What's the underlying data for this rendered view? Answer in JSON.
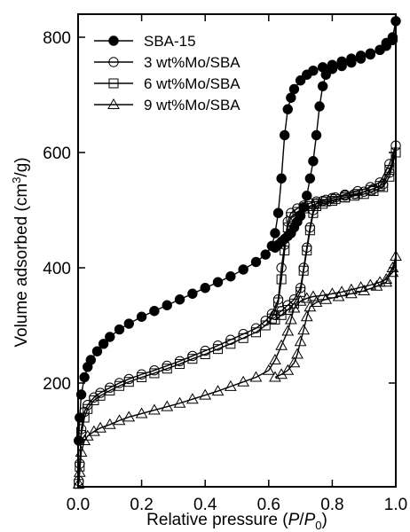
{
  "chart_data": {
    "type": "scatter",
    "title": "",
    "xlabel_parts": [
      "Relative pressure (",
      "P",
      "/",
      "P",
      "0",
      ")"
    ],
    "ylabel_parts": [
      "Volume adsorbed (cm",
      "3",
      "/g)"
    ],
    "xlim": [
      0.0,
      1.0
    ],
    "ylim": [
      20,
      840
    ],
    "xticks": [
      0.0,
      0.2,
      0.4,
      0.6,
      0.8,
      1.0
    ],
    "xtick_labels": [
      "0.0",
      "0.2",
      "0.4",
      "0.6",
      "0.8",
      "1.0"
    ],
    "yticks": [
      200,
      400,
      600,
      800
    ],
    "ytick_labels": [
      "200",
      "400",
      "600",
      "800"
    ],
    "legend_position": "top-left",
    "series": [
      {
        "name": "SBA-15",
        "marker": "filled-circle",
        "x": [
          0.002,
          0.005,
          0.01,
          0.02,
          0.03,
          0.04,
          0.06,
          0.08,
          0.1,
          0.13,
          0.16,
          0.2,
          0.24,
          0.28,
          0.32,
          0.36,
          0.4,
          0.44,
          0.48,
          0.52,
          0.56,
          0.59,
          0.61,
          0.62,
          0.63,
          0.64,
          0.65,
          0.66,
          0.67,
          0.68,
          0.7,
          0.72,
          0.74,
          0.77,
          0.8,
          0.83,
          0.86,
          0.89,
          0.92,
          0.95,
          0.97,
          0.99,
          1.0,
          0.99,
          0.97,
          0.95,
          0.92,
          0.89,
          0.86,
          0.83,
          0.8,
          0.78,
          0.77,
          0.76,
          0.75,
          0.74,
          0.73,
          0.72,
          0.71,
          0.7,
          0.69,
          0.68,
          0.67,
          0.66,
          0.65,
          0.64,
          0.63,
          0.62
        ],
        "y": [
          100,
          140,
          180,
          210,
          228,
          240,
          255,
          268,
          280,
          293,
          303,
          315,
          325,
          335,
          345,
          355,
          365,
          375,
          385,
          397,
          410,
          423,
          438,
          460,
          495,
          555,
          630,
          675,
          695,
          710,
          725,
          735,
          742,
          748,
          752,
          758,
          763,
          768,
          772,
          778,
          785,
          795,
          828,
          800,
          790,
          778,
          770,
          763,
          756,
          750,
          745,
          735,
          715,
          680,
          630,
          585,
          555,
          525,
          505,
          490,
          480,
          470,
          460,
          455,
          450,
          445,
          440,
          435
        ]
      },
      {
        "name": "3 wt%Mo/SBA",
        "marker": "open-circle",
        "x": [
          0.002,
          0.005,
          0.01,
          0.02,
          0.03,
          0.05,
          0.07,
          0.1,
          0.13,
          0.16,
          0.2,
          0.24,
          0.28,
          0.32,
          0.36,
          0.4,
          0.44,
          0.48,
          0.52,
          0.56,
          0.59,
          0.61,
          0.63,
          0.64,
          0.65,
          0.66,
          0.67,
          0.69,
          0.71,
          0.73,
          0.75,
          0.78,
          0.81,
          0.84,
          0.87,
          0.9,
          0.93,
          0.96,
          0.98,
          1.0,
          0.98,
          0.95,
          0.92,
          0.88,
          0.84,
          0.8,
          0.77,
          0.75,
          0.74,
          0.73,
          0.72,
          0.71,
          0.7,
          0.68,
          0.66,
          0.64,
          0.62
        ],
        "y": [
          30,
          60,
          120,
          150,
          162,
          175,
          183,
          192,
          200,
          207,
          215,
          222,
          230,
          238,
          247,
          256,
          265,
          275,
          285,
          295,
          308,
          320,
          345,
          400,
          440,
          480,
          495,
          503,
          508,
          512,
          515,
          518,
          522,
          525,
          528,
          532,
          537,
          545,
          565,
          612,
          580,
          548,
          540,
          533,
          527,
          521,
          516,
          512,
          500,
          470,
          435,
          400,
          365,
          345,
          335,
          325,
          318
        ]
      },
      {
        "name": "6 wt%Mo/SBA",
        "marker": "open-square",
        "x": [
          0.002,
          0.005,
          0.01,
          0.02,
          0.03,
          0.05,
          0.07,
          0.1,
          0.13,
          0.16,
          0.2,
          0.24,
          0.28,
          0.32,
          0.36,
          0.4,
          0.44,
          0.48,
          0.52,
          0.56,
          0.59,
          0.61,
          0.63,
          0.64,
          0.65,
          0.66,
          0.67,
          0.69,
          0.71,
          0.73,
          0.75,
          0.78,
          0.81,
          0.84,
          0.87,
          0.9,
          0.93,
          0.96,
          0.98,
          1.0,
          0.98,
          0.95,
          0.92,
          0.88,
          0.84,
          0.8,
          0.77,
          0.75,
          0.74,
          0.73,
          0.72,
          0.71,
          0.7,
          0.68,
          0.66,
          0.64,
          0.62
        ],
        "y": [
          25,
          55,
          110,
          140,
          155,
          170,
          178,
          187,
          195,
          202,
          210,
          217,
          225,
          233,
          242,
          250,
          259,
          268,
          278,
          288,
          300,
          312,
          340,
          380,
          430,
          470,
          488,
          497,
          503,
          507,
          511,
          515,
          519,
          522,
          525,
          528,
          533,
          540,
          558,
          600,
          570,
          542,
          535,
          528,
          522,
          516,
          511,
          507,
          495,
          465,
          430,
          395,
          358,
          338,
          327,
          318,
          310
        ]
      },
      {
        "name": "9 wt%Mo/SBA",
        "marker": "open-triangle",
        "x": [
          0.002,
          0.005,
          0.01,
          0.02,
          0.03,
          0.05,
          0.07,
          0.1,
          0.13,
          0.16,
          0.2,
          0.24,
          0.28,
          0.32,
          0.36,
          0.4,
          0.44,
          0.48,
          0.52,
          0.56,
          0.6,
          0.62,
          0.64,
          0.66,
          0.67,
          0.68,
          0.7,
          0.72,
          0.74,
          0.77,
          0.8,
          0.83,
          0.86,
          0.89,
          0.92,
          0.95,
          0.97,
          0.99,
          1.0,
          0.99,
          0.97,
          0.94,
          0.9,
          0.86,
          0.82,
          0.78,
          0.75,
          0.73,
          0.72,
          0.71,
          0.7,
          0.69,
          0.68,
          0.66,
          0.64,
          0.62
        ],
        "y": [
          25,
          45,
          80,
          100,
          108,
          116,
          122,
          128,
          135,
          141,
          147,
          153,
          159,
          165,
          172,
          179,
          186,
          194,
          202,
          210,
          222,
          240,
          265,
          290,
          310,
          330,
          342,
          347,
          350,
          352,
          355,
          358,
          362,
          366,
          370,
          375,
          380,
          392,
          420,
          400,
          375,
          368,
          360,
          355,
          350,
          345,
          340,
          332,
          315,
          292,
          272,
          250,
          235,
          222,
          215,
          210
        ]
      }
    ]
  }
}
